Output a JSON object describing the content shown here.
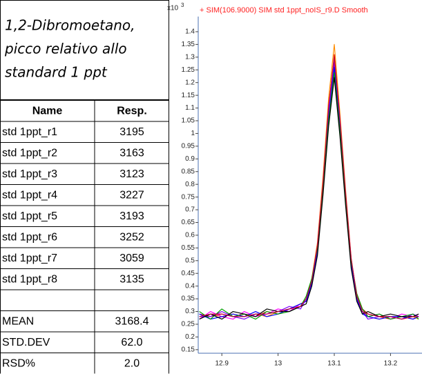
{
  "title_lines": [
    "1,2-Dibromoetano,",
    "picco relativo allo",
    "standard 1 ppt"
  ],
  "table": {
    "header": [
      "Name",
      "Resp."
    ],
    "rows": [
      [
        "std 1ppt_r1",
        "3195"
      ],
      [
        "std 1ppt_r2",
        "3163"
      ],
      [
        "std 1ppt_r3",
        "3123"
      ],
      [
        "std 1ppt_r4",
        "3227"
      ],
      [
        "std 1ppt_r5",
        "3193"
      ],
      [
        "std 1ppt_r6",
        "3252"
      ],
      [
        "std 1ppt_r7",
        "3059"
      ],
      [
        "std 1ppt_r8",
        "3135"
      ]
    ],
    "summary": [
      [
        "MEAN",
        "3168.4"
      ],
      [
        "STD.DEV",
        "62.0"
      ],
      [
        "RSD%",
        "2.0"
      ]
    ]
  },
  "chart_data": {
    "type": "line",
    "title": "+ SIM(106.9000) SIM std 1ppt_noIS_r9.D  Smooth",
    "y_multiplier": "x10",
    "y_multiplier_exponent": "3",
    "x": [
      12.86,
      12.88,
      12.9,
      12.92,
      12.94,
      12.96,
      12.98,
      13.0,
      13.02,
      13.04,
      13.05,
      13.06,
      13.07,
      13.08,
      13.09,
      13.1,
      13.11,
      13.12,
      13.13,
      13.14,
      13.15,
      13.16,
      13.18,
      13.2,
      13.22,
      13.24,
      13.25
    ],
    "series": [
      {
        "color": "#ff8c00",
        "values": [
          0.28,
          0.29,
          0.28,
          0.29,
          0.28,
          0.29,
          0.28,
          0.3,
          0.31,
          0.33,
          0.34,
          0.43,
          0.57,
          0.83,
          1.14,
          1.35,
          1.08,
          0.78,
          0.51,
          0.36,
          0.3,
          0.28,
          0.27,
          0.28,
          0.27,
          0.28,
          0.27
        ]
      },
      {
        "color": "#e00000",
        "values": [
          0.29,
          0.28,
          0.29,
          0.28,
          0.29,
          0.28,
          0.3,
          0.29,
          0.31,
          0.32,
          0.35,
          0.42,
          0.56,
          0.8,
          1.1,
          1.31,
          1.05,
          0.76,
          0.5,
          0.37,
          0.31,
          0.29,
          0.28,
          0.27,
          0.28,
          0.27,
          0.28
        ]
      },
      {
        "color": "#ff00ff",
        "values": [
          0.27,
          0.3,
          0.28,
          0.27,
          0.3,
          0.28,
          0.29,
          0.31,
          0.3,
          0.33,
          0.34,
          0.42,
          0.55,
          0.8,
          1.09,
          1.29,
          1.04,
          0.75,
          0.49,
          0.36,
          0.3,
          0.28,
          0.29,
          0.27,
          0.29,
          0.28,
          0.29
        ]
      },
      {
        "color": "#8000ff",
        "values": [
          0.28,
          0.28,
          0.3,
          0.28,
          0.27,
          0.29,
          0.29,
          0.3,
          0.32,
          0.31,
          0.35,
          0.41,
          0.54,
          0.79,
          1.08,
          1.28,
          1.03,
          0.74,
          0.5,
          0.35,
          0.3,
          0.27,
          0.28,
          0.28,
          0.27,
          0.29,
          0.28
        ]
      },
      {
        "color": "#0000ff",
        "values": [
          0.29,
          0.27,
          0.28,
          0.29,
          0.28,
          0.3,
          0.28,
          0.29,
          0.31,
          0.33,
          0.34,
          0.41,
          0.53,
          0.78,
          1.06,
          1.26,
          1.02,
          0.73,
          0.48,
          0.35,
          0.29,
          0.28,
          0.27,
          0.28,
          0.28,
          0.27,
          0.28
        ]
      },
      {
        "color": "#00a000",
        "values": [
          0.3,
          0.27,
          0.31,
          0.28,
          0.29,
          0.27,
          0.3,
          0.29,
          0.3,
          0.32,
          0.36,
          0.43,
          0.55,
          0.78,
          1.05,
          1.24,
          1.01,
          0.74,
          0.5,
          0.37,
          0.31,
          0.28,
          0.29,
          0.27,
          0.28,
          0.29,
          0.27
        ]
      },
      {
        "color": "#000000",
        "values": [
          0.27,
          0.29,
          0.27,
          0.3,
          0.29,
          0.28,
          0.31,
          0.3,
          0.3,
          0.32,
          0.33,
          0.4,
          0.52,
          0.76,
          1.03,
          1.22,
          0.99,
          0.72,
          0.47,
          0.34,
          0.29,
          0.3,
          0.28,
          0.29,
          0.28,
          0.28,
          0.29
        ]
      },
      {
        "color": "#c00040",
        "values": [
          0.28,
          0.29,
          0.29,
          0.28,
          0.28,
          0.29,
          0.29,
          0.3,
          0.31,
          0.32,
          0.35,
          0.42,
          0.56,
          0.81,
          1.11,
          1.3,
          1.06,
          0.77,
          0.51,
          0.36,
          0.3,
          0.29,
          0.28,
          0.28,
          0.27,
          0.28,
          0.28
        ]
      }
    ],
    "xlim": [
      12.858,
      13.256
    ],
    "ylim": [
      0.136,
      1.427
    ],
    "xticks": [
      12.9,
      13,
      13.1,
      13.2
    ],
    "yticks": [
      0.15,
      0.2,
      0.25,
      0.3,
      0.35,
      0.4,
      0.45,
      0.5,
      0.55,
      0.6,
      0.65,
      0.7,
      0.75,
      0.8,
      0.85,
      0.9,
      0.95,
      1,
      1.05,
      1.1,
      1.15,
      1.2,
      1.25,
      1.3,
      1.35,
      1.4
    ]
  }
}
